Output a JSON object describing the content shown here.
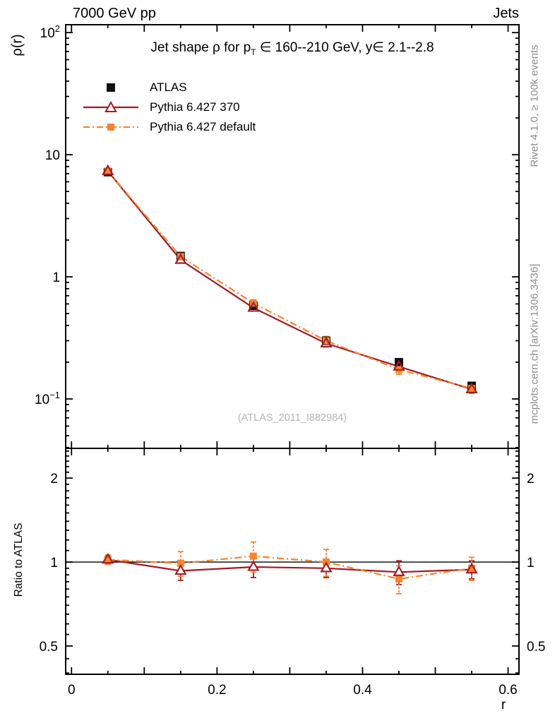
{
  "header": {
    "left": "7000 GeV pp",
    "right": "Jets"
  },
  "title": {
    "part1": "Jet shape ρ for p",
    "sub": "T",
    "part2": " ∈ 160--210 GeV, y∈ 2.1--2.8"
  },
  "axes": {
    "y_label": "ρ(r)",
    "ratio_label": "Ratio to ATLAS",
    "x_label": "r"
  },
  "legend": {
    "items": [
      {
        "label": "ATLAS",
        "marker": "black-filled-square"
      },
      {
        "label": "Pythia 6.427 370",
        "marker": "darkred-line-open-triangle"
      },
      {
        "label": "Pythia 6.427 default",
        "marker": "orange-dashdot-filled-square"
      }
    ]
  },
  "watermark": "(ATLAS_2011_I882984)",
  "side_notes": {
    "top": "Rivet 4.1.0, ≥ 100k events",
    "bottom": "mcplots.cern.ch [arXiv:1306.3436]"
  },
  "colors": {
    "atlas": "#111111",
    "pythia370": "#a31a25",
    "pythia_default": "#f8832d",
    "frame": "#000000",
    "side_note": "#8c8c8c",
    "watermark": "#b5b5b5"
  },
  "chart_data": [
    {
      "type": "line",
      "title": "Jet shape ρ for p_T ∈ 160--210 GeV, y∈ 2.1--2.8",
      "xlabel": "r",
      "ylabel": "ρ(r)",
      "yscale": "log",
      "xlim": [
        -0.008,
        0.615
      ],
      "ylim": [
        0.0394,
        116
      ],
      "grid": false,
      "legend_position": "top-left",
      "xticks": {
        "minor_step": 0.05,
        "major_step": 0.1,
        "labeled": [
          {
            "v": 0,
            "label": "0"
          },
          {
            "v": 0.2,
            "label": "0.2"
          },
          {
            "v": 0.4,
            "label": "0.4"
          },
          {
            "v": 0.6,
            "label": "0.6"
          }
        ]
      },
      "yticks": [
        {
          "v": 100,
          "label": "10^2"
        },
        {
          "v": 10,
          "label": "10"
        },
        {
          "v": 1,
          "label": "1"
        },
        {
          "v": 0.1,
          "label": "10^-1"
        }
      ],
      "x": [
        0.05,
        0.15,
        0.25,
        0.35,
        0.45,
        0.55
      ],
      "series": [
        {
          "name": "ATLAS",
          "marker": "square-filled",
          "line": "none",
          "color_key": "atlas",
          "values": [
            7.2,
            1.48,
            0.58,
            0.3,
            0.2,
            0.128
          ],
          "errors": [
            0.25,
            0.05,
            0.02,
            0.012,
            0.008,
            0.006
          ]
        },
        {
          "name": "Pythia 6.427 370",
          "marker": "triangle-open",
          "line": "solid",
          "color_key": "pythia370",
          "values": [
            7.34,
            1.376,
            0.557,
            0.285,
            0.184,
            0.12
          ],
          "errors": [
            0.2,
            0.07,
            0.03,
            0.018,
            0.012,
            0.009
          ]
        },
        {
          "name": "Pythia 6.427 default",
          "marker": "square-filled",
          "line": "dashdot",
          "color_key": "pythia_default",
          "values": [
            7.34,
            1.465,
            0.609,
            0.3,
            0.174,
            0.122
          ],
          "errors": [
            0.25,
            0.09,
            0.04,
            0.025,
            0.015,
            0.011
          ]
        }
      ]
    },
    {
      "type": "line",
      "title": "",
      "ylabel": "Ratio to ATLAS",
      "yscale": "log",
      "ylim": [
        0.3958,
        2.557
      ],
      "reference_line": 1,
      "yticks": [
        {
          "v": 2,
          "label": "2"
        },
        {
          "v": 1,
          "label": "1"
        },
        {
          "v": 0.5,
          "label": "0.5"
        }
      ],
      "x": [
        0.05,
        0.15,
        0.25,
        0.35,
        0.45,
        0.55
      ],
      "series": [
        {
          "name": "Pythia 6.427 370",
          "marker": "triangle-open",
          "line": "solid",
          "color_key": "pythia370",
          "values": [
            1.02,
            0.93,
            0.96,
            0.95,
            0.92,
            0.94
          ],
          "errors": [
            0.03,
            0.07,
            0.08,
            0.07,
            0.09,
            0.07
          ]
        },
        {
          "name": "Pythia 6.427 default",
          "marker": "square-filled",
          "line": "dashdot",
          "color_key": "pythia_default",
          "values": [
            1.02,
            0.99,
            1.05,
            1.0,
            0.87,
            0.95
          ],
          "errors": [
            0.04,
            0.1,
            0.13,
            0.11,
            0.1,
            0.09
          ]
        }
      ]
    }
  ]
}
